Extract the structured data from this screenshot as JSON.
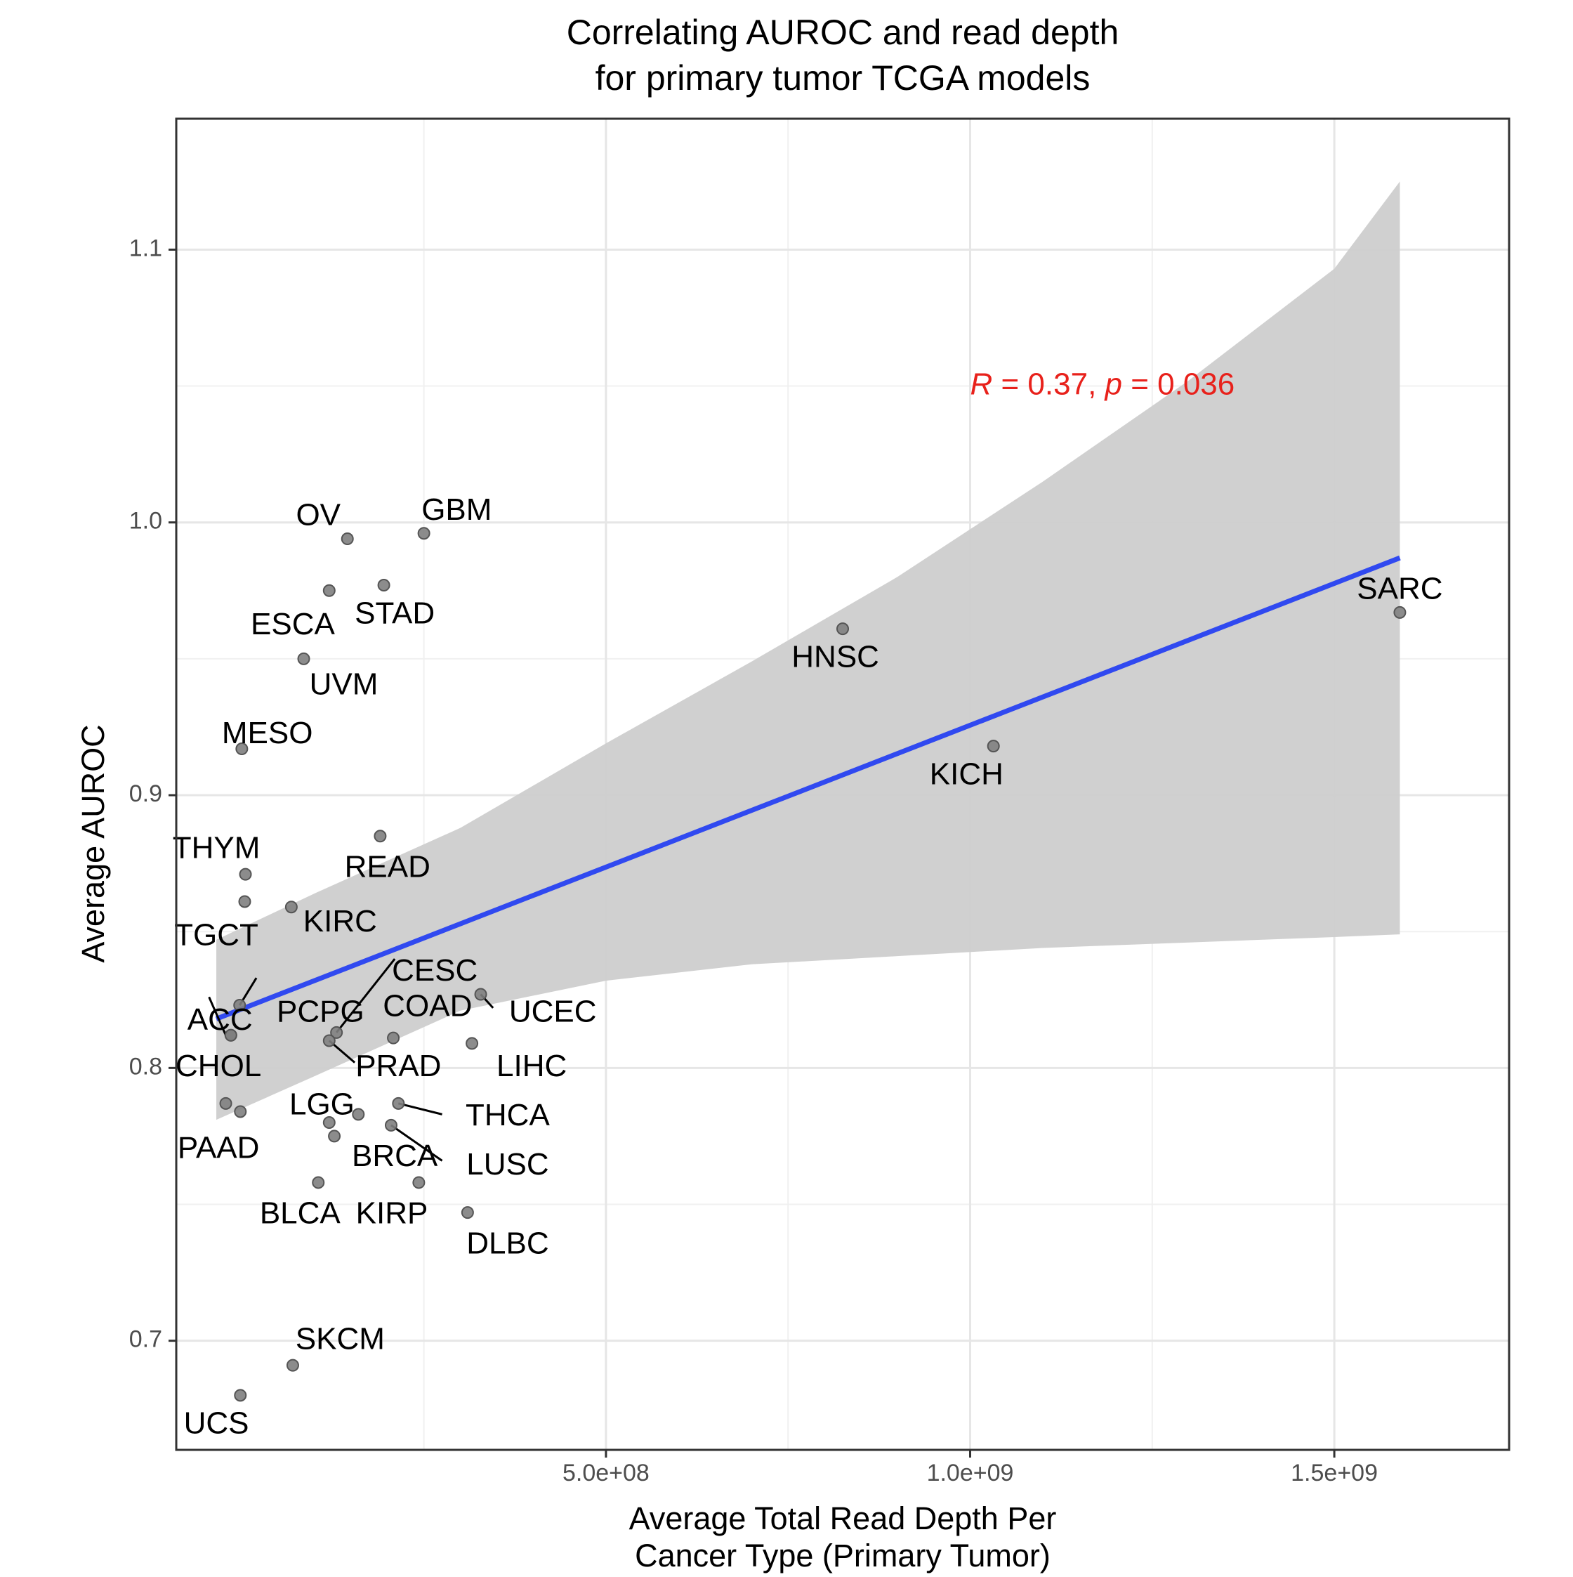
{
  "chart_data": {
    "type": "scatter",
    "title": [
      "Correlating AUROC and read depth",
      "for primary tumor TCGA models"
    ],
    "xlabel": [
      "Average Total Read Depth Per",
      "Cancer Type (Primary Tumor)"
    ],
    "ylabel": "Average AUROC",
    "xlim": [
      -90000000.0,
      1740000000.0
    ],
    "ylim": [
      0.66,
      1.148
    ],
    "x_ticks": [
      {
        "value": 500000000.0,
        "label": "5.0e+08"
      },
      {
        "value": 1000000000.0,
        "label": "1.0e+09"
      },
      {
        "value": 1500000000.0,
        "label": "1.5e+09"
      }
    ],
    "x_minor_ticks": [
      250000000.0,
      750000000.0,
      1250000000.0
    ],
    "y_ticks": [
      {
        "value": 0.7,
        "label": "0.7"
      },
      {
        "value": 0.8,
        "label": "0.8"
      },
      {
        "value": 0.9,
        "label": "0.9"
      },
      {
        "value": 1.0,
        "label": "1.0"
      },
      {
        "value": 1.1,
        "label": "1.1"
      }
    ],
    "y_minor_ticks": [
      0.75,
      0.85,
      0.95,
      1.05
    ],
    "grid": true,
    "point_color": "#808080",
    "line_color": "#3049f0",
    "band_color": "#cdcdcd",
    "annotation_color": "#e8211b",
    "annotation": {
      "r_symbol": "R",
      "r_value": " = 0.37, ",
      "p_symbol": "p",
      "p_value": " = 0.036",
      "x": 1000000000.0,
      "y": 1.05
    },
    "regression": {
      "x": [
        -35000000.0,
        1590000000.0
      ],
      "y": [
        0.818,
        0.987
      ]
    },
    "confidence_band": {
      "upper": [
        [
          -35000000.0,
          0.847
        ],
        [
          100000000.0,
          0.864
        ],
        [
          300000000.0,
          0.888
        ],
        [
          500000000.0,
          0.919
        ],
        [
          700000000.0,
          0.949
        ],
        [
          900000000.0,
          0.98
        ],
        [
          1100000000.0,
          1.015
        ],
        [
          1300000000.0,
          1.052
        ],
        [
          1500000000.0,
          1.093
        ],
        [
          1590000000.0,
          1.125
        ]
      ],
      "lower": [
        [
          -35000000.0,
          0.781
        ],
        [
          100000000.0,
          0.797
        ],
        [
          300000000.0,
          0.821
        ],
        [
          500000000.0,
          0.832
        ],
        [
          700000000.0,
          0.838
        ],
        [
          900000000.0,
          0.841
        ],
        [
          1100000000.0,
          0.844
        ],
        [
          1300000000.0,
          0.846
        ],
        [
          1500000000.0,
          0.848
        ],
        [
          1590000000.0,
          0.849
        ]
      ]
    },
    "points": [
      {
        "label": "OV",
        "x": 145000000.0,
        "y": 0.994,
        "lx": 105000000.0,
        "ly": 1.002
      },
      {
        "label": "GBM",
        "x": 250000000.0,
        "y": 0.996,
        "lx": 295000000.0,
        "ly": 1.004
      },
      {
        "label": "ESCA",
        "x": 120000000.0,
        "y": 0.975,
        "lx": 70000000.0,
        "ly": 0.962
      },
      {
        "label": "STAD",
        "x": 195000000.0,
        "y": 0.977,
        "lx": 210000000.0,
        "ly": 0.966
      },
      {
        "label": "UVM",
        "x": 85000000.0,
        "y": 0.95,
        "lx": 140000000.0,
        "ly": 0.94
      },
      {
        "label": "HNSC",
        "x": 825000000.0,
        "y": 0.961,
        "lx": 815000000.0,
        "ly": 0.95
      },
      {
        "label": "SARC",
        "x": 1590000000.0,
        "y": 0.967,
        "lx": 1590000000.0,
        "ly": 0.975
      },
      {
        "label": "MESO",
        "x": 0,
        "y": 0.917,
        "lx": 35000000.0,
        "ly": 0.922
      },
      {
        "label": "KICH",
        "x": 1032000000.0,
        "y": 0.918,
        "lx": 995000000.0,
        "ly": 0.907
      },
      {
        "label": "READ",
        "x": 190000000.0,
        "y": 0.885,
        "lx": 200000000.0,
        "ly": 0.873
      },
      {
        "label": "THYM",
        "x": 5000000.0,
        "y": 0.871,
        "lx": -35000000.0,
        "ly": 0.88
      },
      {
        "label": "TGCT",
        "x": 4000000.0,
        "y": 0.861,
        "lx": -35000000.0,
        "ly": 0.848
      },
      {
        "label": "KIRC",
        "x": 68000000.0,
        "y": 0.859,
        "lx": 135000000.0,
        "ly": 0.853
      },
      {
        "label": "CESC",
        "x": 130000000.0,
        "y": 0.813,
        "lx": 265000000.0,
        "ly": 0.835
      },
      {
        "label": "ACC",
        "x": -3000000.0,
        "y": 0.823,
        "lx": -30000000.0,
        "ly": 0.817
      },
      {
        "label": "PCPG",
        "x": -15000000.0,
        "y": 0.812,
        "lx": 108000000.0,
        "ly": 0.82
      },
      {
        "label": "COAD",
        "x": 208000000.0,
        "y": 0.811,
        "lx": 255000000.0,
        "ly": 0.822
      },
      {
        "label": "UCEC",
        "x": 328000000.0,
        "y": 0.827,
        "lx": 427000000.0,
        "ly": 0.82
      },
      {
        "label": "CHOL",
        "x": -15000000.0,
        "y": 0.812,
        "lx": -32000000.0,
        "ly": 0.8
      },
      {
        "label": "PRAD",
        "x": 120000000.0,
        "y": 0.81,
        "lx": 215000000.0,
        "ly": 0.8
      },
      {
        "label": "LIHC",
        "x": 316000000.0,
        "y": 0.809,
        "lx": 398000000.0,
        "ly": 0.8
      },
      {
        "label": "LGG",
        "x": 160000000.0,
        "y": 0.783,
        "lx": 110000000.0,
        "ly": 0.786
      },
      {
        "label": "THCA",
        "x": 215000000.0,
        "y": 0.787,
        "lx": 365000000.0,
        "ly": 0.782
      },
      {
        "label": "PAAD",
        "x": -22000000.0,
        "y": 0.787,
        "lx": -32000000.0,
        "ly": 0.77
      },
      {
        "label": "PAAD2",
        "x": -2000000.0,
        "y": 0.784,
        "lx": null,
        "ly": null
      },
      {
        "label": "BRCA",
        "x": 120000000.0,
        "y": 0.78,
        "lx": 210000000.0,
        "ly": 0.767
      },
      {
        "label": "BRCA2",
        "x": 127000000.0,
        "y": 0.775,
        "lx": null,
        "ly": null
      },
      {
        "label": "LUSC",
        "x": 205000000.0,
        "y": 0.779,
        "lx": 365000000.0,
        "ly": 0.764
      },
      {
        "label": "BLCA",
        "x": 105000000.0,
        "y": 0.758,
        "lx": 80000000.0,
        "ly": 0.746
      },
      {
        "label": "KIRP",
        "x": 243000000.0,
        "y": 0.758,
        "lx": 206000000.0,
        "ly": 0.746
      },
      {
        "label": "DLBC",
        "x": 310000000.0,
        "y": 0.747,
        "lx": 365000000.0,
        "ly": 0.735
      },
      {
        "label": "SKCM",
        "x": 70000000.0,
        "y": 0.691,
        "lx": 135000000.0,
        "ly": 0.7
      },
      {
        "label": "UCS",
        "x": -2000000.0,
        "y": 0.68,
        "lx": -35000000.0,
        "ly": 0.669
      }
    ],
    "segments": [
      {
        "from": [
          -22000000.0,
          0.812
        ],
        "to": [
          -45000000.0,
          0.826
        ]
      },
      {
        "from": [
          -3000000.0,
          0.823
        ],
        "to": [
          20000000.0,
          0.833
        ]
      },
      {
        "from": [
          130000000.0,
          0.813
        ],
        "to": [
          210000000.0,
          0.84
        ]
      },
      {
        "from": [
          120000000.0,
          0.81
        ],
        "to": [
          155000000.0,
          0.802
        ]
      },
      {
        "from": [
          328000000.0,
          0.827
        ],
        "to": [
          345000000.0,
          0.822
        ]
      },
      {
        "from": [
          215000000.0,
          0.787
        ],
        "to": [
          275000000.0,
          0.783
        ]
      },
      {
        "from": [
          205000000.0,
          0.779
        ],
        "to": [
          275000000.0,
          0.766
        ]
      }
    ]
  }
}
